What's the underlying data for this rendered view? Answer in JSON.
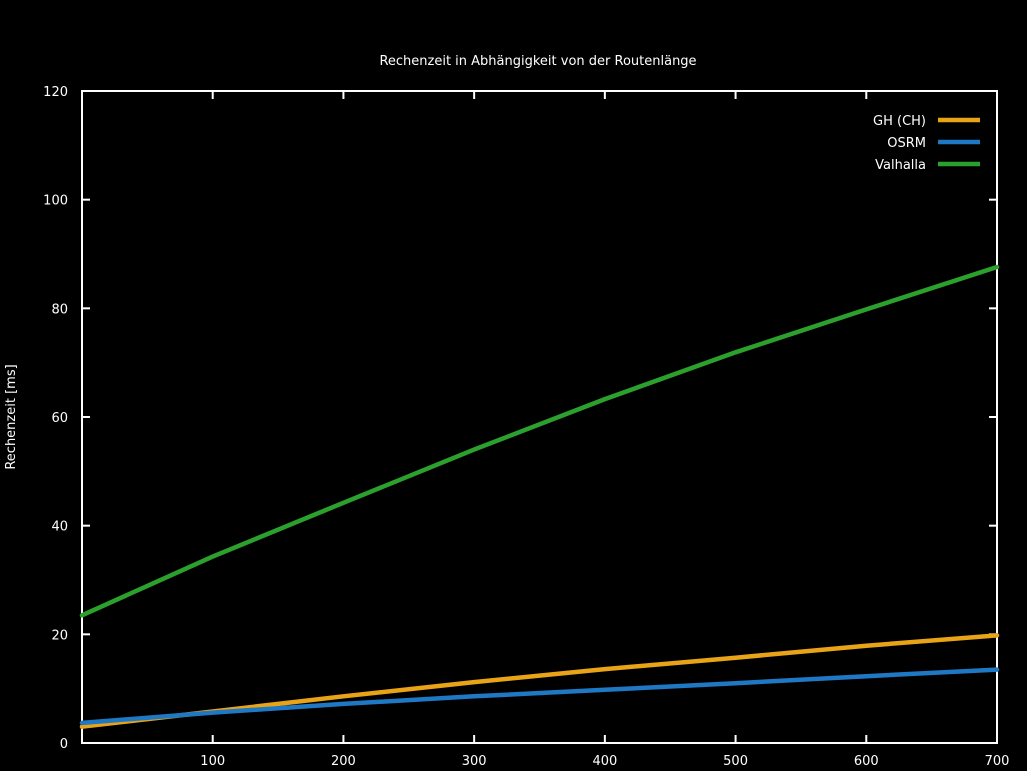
{
  "chart_data": {
    "type": "line",
    "title": "Rechenzeit in Abhängigkeit von der Routenlänge",
    "xlabel": "",
    "ylabel": "Rechenzeit [ms]",
    "xlim": [
      0,
      700
    ],
    "ylim": [
      0,
      120
    ],
    "x_ticks": [
      100,
      200,
      300,
      400,
      500,
      600,
      700
    ],
    "y_ticks": [
      0,
      20,
      40,
      60,
      80,
      100,
      120
    ],
    "grid": false,
    "legend_position": "top-right",
    "series": [
      {
        "name": "GH (CH)",
        "color": "#e8a317",
        "x": [
          0,
          100,
          200,
          300,
          400,
          500,
          600,
          700
        ],
        "y": [
          3.0,
          5.8,
          8.6,
          11.2,
          13.6,
          15.7,
          17.9,
          19.8
        ]
      },
      {
        "name": "OSRM",
        "color": "#1f78c4",
        "x": [
          0,
          100,
          200,
          300,
          400,
          500,
          600,
          700
        ],
        "y": [
          3.7,
          5.6,
          7.2,
          8.6,
          9.8,
          11.0,
          12.3,
          13.5
        ]
      },
      {
        "name": "Valhalla",
        "color": "#2ca02c",
        "x": [
          0,
          100,
          200,
          300,
          400,
          500,
          600,
          700
        ],
        "y": [
          23.5,
          34.3,
          44.2,
          54.0,
          63.3,
          71.9,
          79.8,
          87.6
        ]
      }
    ]
  }
}
